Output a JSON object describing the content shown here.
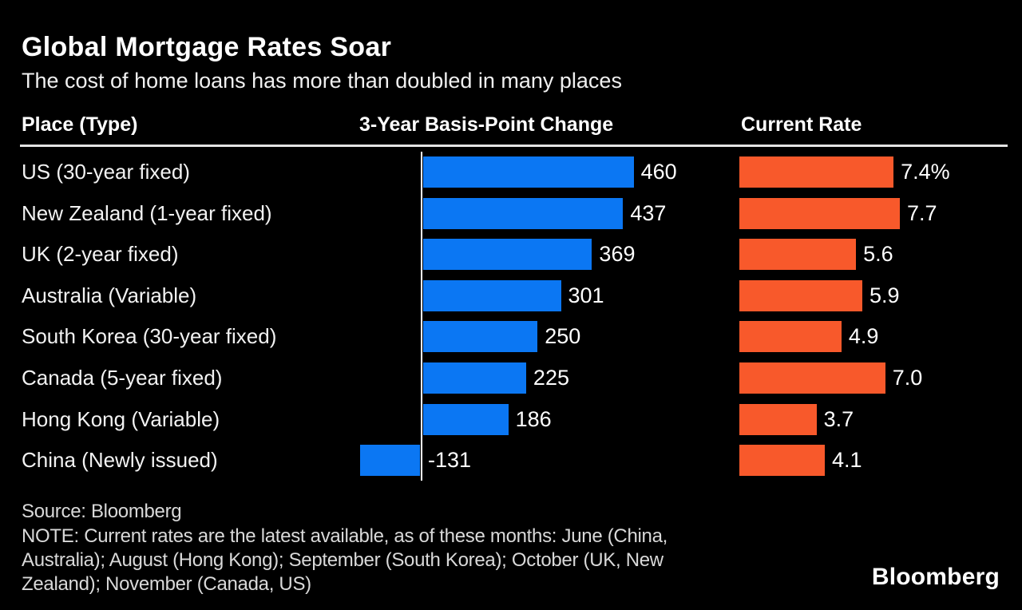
{
  "header": {
    "title": "Global Mortgage Rates Soar",
    "subtitle": "The cost of home loans has more than doubled in many places"
  },
  "columns": {
    "place": "Place (Type)",
    "change": "3-Year Basis-Point Change",
    "rate": "Current Rate"
  },
  "colors": {
    "background": "#000000",
    "change_bar": "#0b77f3",
    "rate_bar": "#f8592b",
    "text": "#ffffff",
    "muted_text": "#d9d9d9"
  },
  "chart_data": {
    "type": "bar",
    "title": "Global Mortgage Rates Soar",
    "subtitle": "The cost of home loans has more than doubled in many places",
    "orientation": "horizontal",
    "legend_position": "none",
    "grid": false,
    "categories": [
      "US (30-year fixed)",
      "New Zealand (1-year fixed)",
      "UK (2-year fixed)",
      "Australia (Variable)",
      "South Korea (30-year fixed)",
      "Canada (5-year fixed)",
      "Hong Kong (Variable)",
      "China (Newly issued)"
    ],
    "series": [
      {
        "name": "3-Year Basis-Point Change",
        "unit": "bp",
        "values": [
          460,
          437,
          369,
          301,
          250,
          225,
          186,
          -131
        ]
      },
      {
        "name": "Current Rate",
        "unit": "%",
        "values": [
          7.4,
          7.7,
          5.6,
          5.9,
          4.9,
          7.0,
          3.7,
          4.1
        ]
      }
    ],
    "rows": [
      {
        "place": "US (30-year fixed)",
        "change": 460,
        "change_label": "460",
        "rate": 7.4,
        "rate_label": "7.4%"
      },
      {
        "place": "New Zealand (1-year fixed)",
        "change": 437,
        "change_label": "437",
        "rate": 7.7,
        "rate_label": "7.7"
      },
      {
        "place": "UK (2-year fixed)",
        "change": 369,
        "change_label": "369",
        "rate": 5.6,
        "rate_label": "5.6"
      },
      {
        "place": "Australia (Variable)",
        "change": 301,
        "change_label": "301",
        "rate": 5.9,
        "rate_label": "5.9"
      },
      {
        "place": "South Korea (30-year fixed)",
        "change": 250,
        "change_label": "250",
        "rate": 4.9,
        "rate_label": "4.9"
      },
      {
        "place": "Canada (5-year fixed)",
        "change": 225,
        "change_label": "225",
        "rate": 7.0,
        "rate_label": "7.0"
      },
      {
        "place": "Hong Kong (Variable)",
        "change": 186,
        "change_label": "186",
        "rate": 3.7,
        "rate_label": "3.7"
      },
      {
        "place": "China (Newly issued)",
        "change": -131,
        "change_label": "-131",
        "rate": 4.1,
        "rate_label": "4.1"
      }
    ]
  },
  "footer": {
    "source": "Source: Bloomberg",
    "note_lines": [
      "NOTE: Current rates are the latest available, as of these months: June (China,",
      "Australia); August (Hong Kong); September (South Korea); October (UK, New",
      "Zealand); November (Canada, US)"
    ],
    "logo": "Bloomberg"
  }
}
